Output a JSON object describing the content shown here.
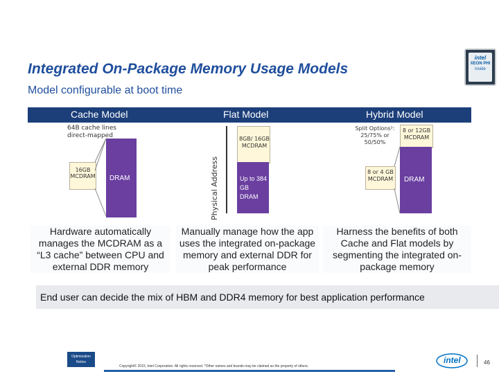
{
  "title": "Integrated On-Package Memory Usage Models",
  "subtitle": "Model configurable at boot time",
  "badge": {
    "brand": "intel",
    "line1": "XEON PHI",
    "line2": "inside"
  },
  "columns": {
    "cache": {
      "header": "Cache Model",
      "note": "64B cache lines direct-mapped",
      "mcdram": "16GB MCDRAM",
      "dram": "DRAM",
      "description": "Hardware automatically manages the MCDRAM as a “L3 cache” between CPU and external DDR memory"
    },
    "flat": {
      "header": "Flat Model",
      "axis_label": "Physical Address",
      "mcdram": "8GB/ 16GB MCDRAM",
      "dram": "Up to 384 GB DRAM",
      "description": "Manually manage how the app uses the integrated on-package memory and external DDR for peak performance"
    },
    "hybrid": {
      "header": "Hybrid Model",
      "split": "Split Options²: 25/75% or 50/50%",
      "mcdram_top": "8 or 12GB MCDRAM",
      "mcdram_cache": "8 or 4 GB MCDRAM",
      "dram": "DRAM",
      "description": "Harness the benefits of both Cache and Flat models by segmenting the integrated on-package memory"
    }
  },
  "end_user": "End user can decide the mix of HBM and DDR4 memory for best application performance",
  "footer": {
    "optimization": "Optimization Notice",
    "copyright": "Copyright© 2015, Intel Corporation. All rights reserved. *Other names and brands may be claimed as the property of others.",
    "logo": "intel",
    "page": "46"
  }
}
